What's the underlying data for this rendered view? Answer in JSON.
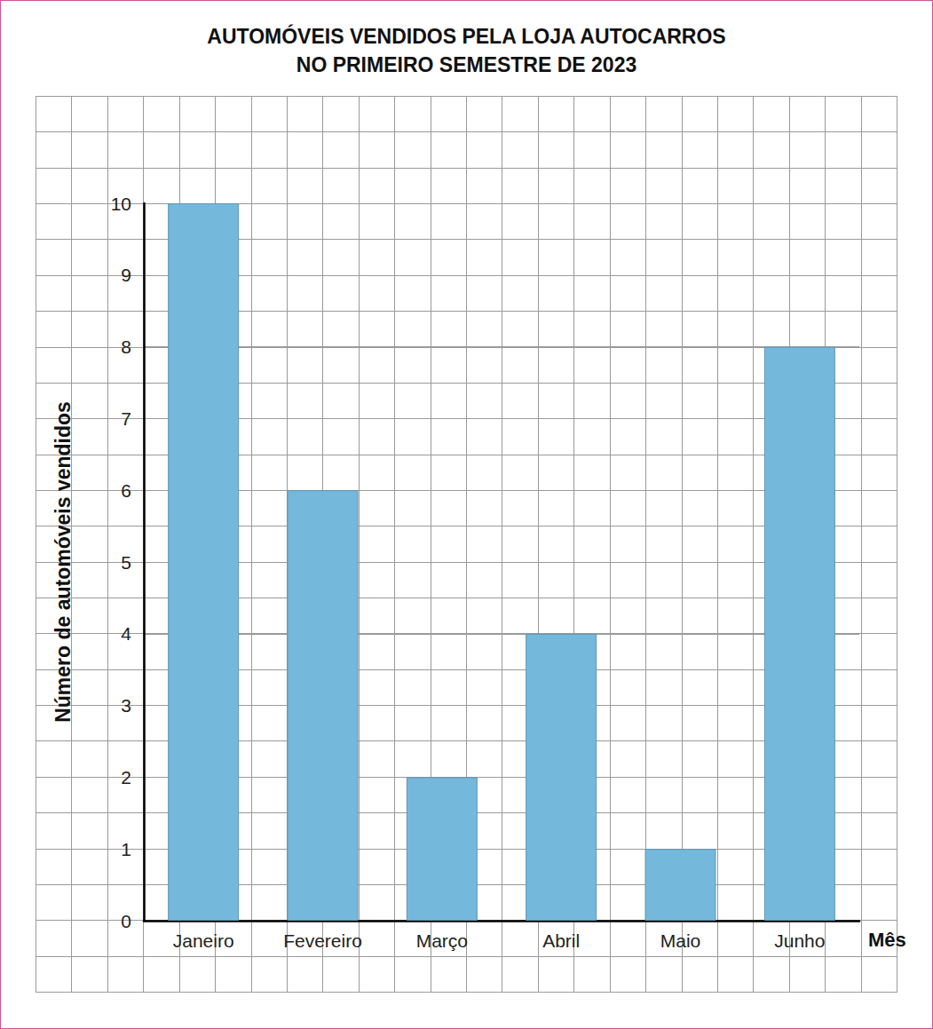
{
  "chart_data": {
    "type": "bar",
    "title": "AUTOMÓVEIS VENDIDOS PELA LOJA AUTOCARROS\nNO PRIMEIRO SEMESTRE DE 2023",
    "x_label": "Mês",
    "y_label": "Número de automóveis vendidos",
    "categories": [
      "Janeiro",
      "Fevereiro",
      "Março",
      "Abril",
      "Maio",
      "Junho"
    ],
    "values": [
      10,
      6,
      2,
      4,
      1,
      8
    ],
    "color": "#74b9db",
    "ylim": [
      0,
      10
    ],
    "yticks": [
      0,
      1,
      2,
      3,
      4,
      5,
      6,
      7,
      8,
      9,
      10
    ],
    "grid": true
  }
}
